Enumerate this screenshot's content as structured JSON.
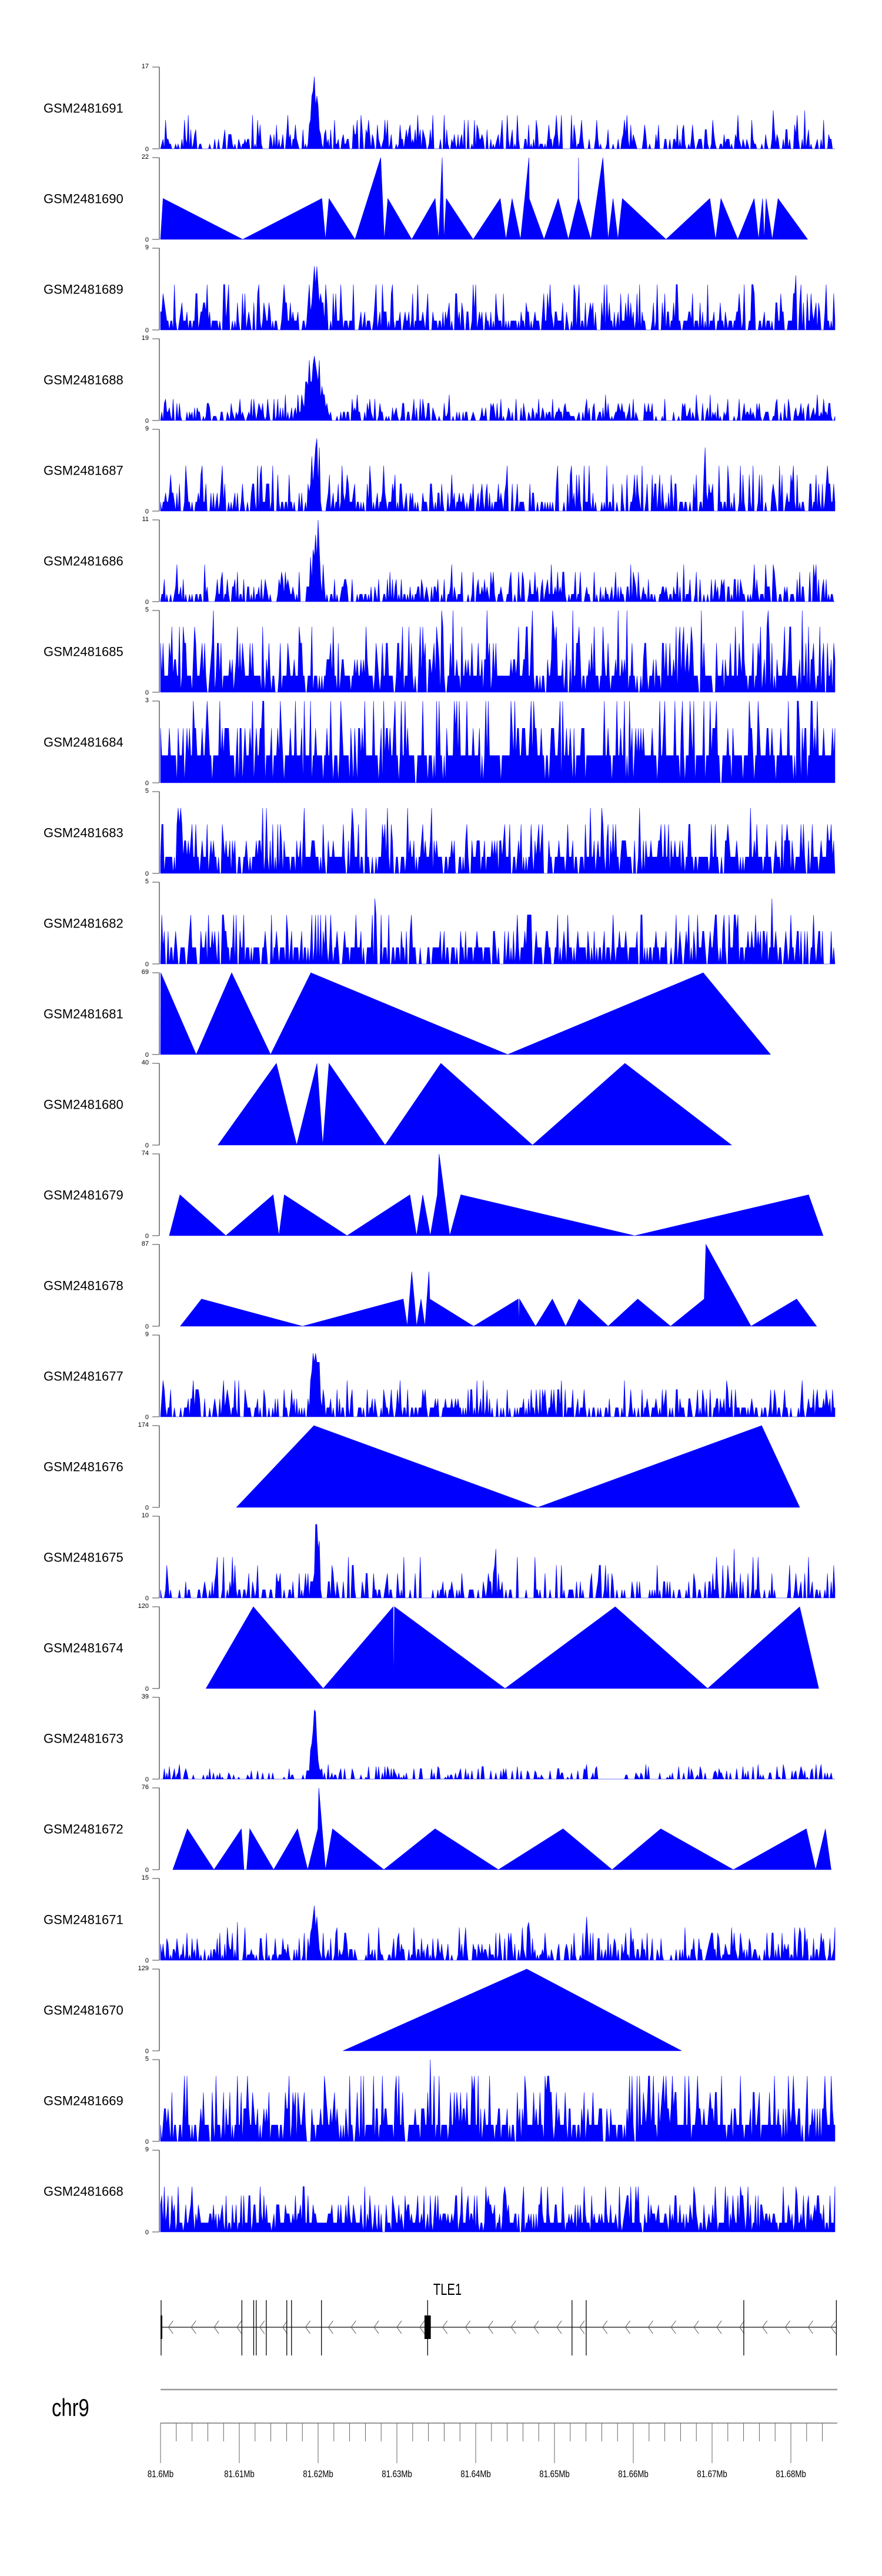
{
  "chart_data": {
    "type": "area",
    "colors": {
      "fill": "#0000ff",
      "axis": "#888888"
    },
    "x_unit": "kb offset from 81.6Mb",
    "xlim_kb": [
      0,
      86
    ],
    "tracks": [
      {
        "name": "GSM2481691",
        "ylim": [
          0,
          17
        ],
        "kind": "noise",
        "seed": 11,
        "density": 0.55,
        "spike": 0.35,
        "hotspot_kb": 19.6,
        "hotspot_amp": 1.0,
        "hotspot_w": 0.5
      },
      {
        "name": "GSM2481690",
        "ylim": [
          0,
          22
        ],
        "kind": "points",
        "points": [
          [
            0,
            0
          ],
          [
            0.32,
            11
          ],
          [
            10.43,
            0
          ],
          [
            20.48,
            11
          ],
          [
            20.93,
            0
          ],
          [
            21.38,
            11
          ],
          [
            24.69,
            0
          ],
          [
            27.95,
            22
          ],
          [
            28.4,
            0
          ],
          [
            28.85,
            11
          ],
          [
            31.88,
            0
          ],
          [
            34.85,
            11
          ],
          [
            35.3,
            0
          ],
          [
            35.75,
            22
          ],
          [
            35.98,
            0
          ],
          [
            36.26,
            11
          ],
          [
            39.68,
            0
          ],
          [
            43.11,
            11
          ],
          [
            43.84,
            0
          ],
          [
            44.62,
            11
          ],
          [
            45.69,
            0
          ],
          [
            46.76,
            22
          ],
          [
            46.8,
            11
          ],
          [
            48.67,
            0
          ],
          [
            50.47,
            11
          ],
          [
            51.76,
            0
          ],
          [
            53.0,
            11
          ],
          [
            53.05,
            22
          ],
          [
            53.1,
            11
          ],
          [
            54.62,
            0
          ],
          [
            56.14,
            22
          ],
          [
            56.81,
            0
          ],
          [
            57.43,
            11
          ],
          [
            58.05,
            0
          ],
          [
            58.61,
            11
          ],
          [
            64.16,
            0
          ],
          [
            69.72,
            11
          ],
          [
            70.45,
            0
          ],
          [
            71.13,
            11
          ],
          [
            73.26,
            0
          ],
          [
            75.34,
            11
          ],
          [
            75.9,
            0
          ],
          [
            76.41,
            11
          ],
          [
            76.63,
            0
          ],
          [
            76.86,
            11
          ],
          [
            77.64,
            0
          ],
          [
            78.37,
            11
          ],
          [
            82.13,
            0
          ]
        ]
      },
      {
        "name": "GSM2481689",
        "ylim": [
          0,
          9
        ],
        "kind": "noise",
        "seed": 23,
        "density": 0.7,
        "spike": 0.5,
        "hotspot_kb": 19.8,
        "hotspot_amp": 0.8,
        "hotspot_w": 0.8
      },
      {
        "name": "GSM2481688",
        "ylim": [
          0,
          19
        ],
        "kind": "noise",
        "seed": 37,
        "density": 0.6,
        "spike": 0.22,
        "hotspot_kb": 19.5,
        "hotspot_amp": 1.0,
        "hotspot_w": 1.1
      },
      {
        "name": "GSM2481687",
        "ylim": [
          0,
          9
        ],
        "kind": "noise",
        "seed": 41,
        "density": 0.6,
        "spike": 0.5,
        "hotspot_kb": 19.7,
        "hotspot_amp": 0.9,
        "hotspot_w": 0.5
      },
      {
        "name": "GSM2481686",
        "ylim": [
          0,
          11
        ],
        "kind": "noise",
        "seed": 53,
        "density": 0.6,
        "spike": 0.35,
        "hotspot_kb": 19.6,
        "hotspot_amp": 0.95,
        "hotspot_w": 0.7
      },
      {
        "name": "GSM2481685",
        "ylim": [
          0,
          5
        ],
        "kind": "noise",
        "seed": 67,
        "density": 0.85,
        "spike": 0.8,
        "hotspot_kb": null,
        "hotspot_amp": 0,
        "hotspot_w": 1
      },
      {
        "name": "GSM2481684",
        "ylim": [
          0,
          3
        ],
        "kind": "noise",
        "seed": 71,
        "density": 0.9,
        "spike": 0.85,
        "hotspot_kb": null,
        "hotspot_amp": 0,
        "hotspot_w": 1
      },
      {
        "name": "GSM2481683",
        "ylim": [
          0,
          5
        ],
        "kind": "noise",
        "seed": 83,
        "density": 0.8,
        "spike": 0.6,
        "hotspot_kb": null,
        "hotspot_amp": 0,
        "hotspot_w": 1
      },
      {
        "name": "GSM2481682",
        "ylim": [
          0,
          5
        ],
        "kind": "noise",
        "seed": 97,
        "density": 0.7,
        "spike": 0.55,
        "hotspot_kb": null,
        "hotspot_amp": 0,
        "hotspot_w": 1
      },
      {
        "name": "GSM2481681",
        "ylim": [
          0,
          69
        ],
        "kind": "points",
        "points": [
          [
            0,
            0
          ],
          [
            0.04,
            69
          ],
          [
            4.53,
            0
          ],
          [
            9.03,
            69
          ],
          [
            13.97,
            0
          ],
          [
            19.08,
            69
          ],
          [
            44.06,
            0
          ],
          [
            68.88,
            69
          ],
          [
            77.42,
            0
          ]
        ]
      },
      {
        "name": "GSM2481680",
        "ylim": [
          0,
          40
        ],
        "kind": "points",
        "points": [
          [
            7.28,
            0
          ],
          [
            14.7,
            40
          ],
          [
            17.28,
            0
          ],
          [
            19.86,
            40
          ],
          [
            20.59,
            0
          ],
          [
            21.38,
            40
          ],
          [
            28.51,
            0
          ],
          [
            35.58,
            40
          ],
          [
            47.21,
            0
          ],
          [
            58.94,
            40
          ],
          [
            72.47,
            0
          ]
        ]
      },
      {
        "name": "GSM2481679",
        "ylim": [
          0,
          74
        ],
        "kind": "points",
        "points": [
          [
            1.11,
            0
          ],
          [
            2.46,
            37
          ],
          [
            8.29,
            0
          ],
          [
            14.3,
            37
          ],
          [
            15.03,
            0
          ],
          [
            15.71,
            37
          ],
          [
            23.68,
            0
          ],
          [
            31.65,
            37
          ],
          [
            32.5,
            0
          ],
          [
            33.28,
            37
          ],
          [
            34.24,
            0
          ],
          [
            35.13,
            37
          ],
          [
            35.36,
            74
          ],
          [
            36.71,
            0
          ],
          [
            38.11,
            37
          ],
          [
            60.18,
            0
          ],
          [
            82.25,
            37
          ],
          [
            84.1,
            0
          ]
        ]
      },
      {
        "name": "GSM2481678",
        "ylim": [
          0,
          87
        ],
        "kind": "points",
        "points": [
          [
            2.51,
            0
          ],
          [
            5.21,
            29
          ],
          [
            18.01,
            0
          ],
          [
            30.81,
            29
          ],
          [
            31.32,
            0
          ],
          [
            31.88,
            58
          ],
          [
            32.2,
            29
          ],
          [
            32.5,
            0
          ],
          [
            33.06,
            29
          ],
          [
            33.56,
            0
          ],
          [
            34.07,
            58
          ],
          [
            34.18,
            29
          ],
          [
            39.74,
            0
          ],
          [
            45.41,
            29
          ],
          [
            45.5,
            0
          ],
          [
            45.55,
            29
          ],
          [
            47.6,
            0
          ],
          [
            49.73,
            29
          ],
          [
            51.42,
            0
          ],
          [
            53.1,
            29
          ],
          [
            56.81,
            0
          ],
          [
            60.57,
            29
          ],
          [
            64.73,
            0
          ],
          [
            69.0,
            29
          ],
          [
            69.22,
            87
          ],
          [
            74.94,
            0
          ],
          [
            80.73,
            29
          ],
          [
            83.26,
            0
          ]
        ]
      },
      {
        "name": "GSM2481677",
        "ylim": [
          0,
          9
        ],
        "kind": "noise",
        "seed": 101,
        "density": 0.6,
        "spike": 0.35,
        "hotspot_kb": 19.6,
        "hotspot_amp": 0.8,
        "hotspot_w": 0.7
      },
      {
        "name": "GSM2481676",
        "ylim": [
          0,
          174
        ],
        "kind": "points",
        "points": [
          [
            9.64,
            0
          ],
          [
            19.47,
            174
          ],
          [
            47.88,
            0
          ],
          [
            76.29,
            174
          ],
          [
            81.12,
            0
          ]
        ]
      },
      {
        "name": "GSM2481675",
        "ylim": [
          0,
          10
        ],
        "kind": "noise",
        "seed": 113,
        "density": 0.45,
        "spike": 0.4,
        "hotspot_kb": 19.8,
        "hotspot_amp": 0.9,
        "hotspot_w": 0.4
      },
      {
        "name": "GSM2481674",
        "ylim": [
          0,
          120
        ],
        "kind": "points",
        "points": [
          [
            5.77,
            0
          ],
          [
            11.78,
            120
          ],
          [
            20.65,
            0
          ],
          [
            29.52,
            120
          ],
          [
            29.6,
            0
          ],
          [
            29.69,
            120
          ],
          [
            43.73,
            0
          ],
          [
            57.71,
            120
          ],
          [
            69.44,
            0
          ],
          [
            81.12,
            120
          ],
          [
            83.54,
            0
          ]
        ]
      },
      {
        "name": "GSM2481673",
        "ylim": [
          0,
          39
        ],
        "kind": "noise",
        "seed": 127,
        "density": 0.35,
        "spike": 0.12,
        "hotspot_kb": 19.5,
        "hotspot_amp": 1.0,
        "hotspot_w": 0.45
      },
      {
        "name": "GSM2481672",
        "ylim": [
          0,
          76
        ],
        "kind": "points",
        "points": [
          [
            1.56,
            0
          ],
          [
            3.41,
            38
          ],
          [
            6.78,
            0
          ],
          [
            10.26,
            38
          ],
          [
            10.6,
            0
          ],
          [
            10.93,
            0
          ],
          [
            11.33,
            38
          ],
          [
            14.36,
            0
          ],
          [
            17.39,
            38
          ],
          [
            18.68,
            0
          ],
          [
            19.97,
            38
          ],
          [
            20.09,
            76
          ],
          [
            20.93,
            0
          ],
          [
            21.83,
            38
          ],
          [
            28.34,
            0
          ],
          [
            34.85,
            38
          ],
          [
            42.88,
            0
          ],
          [
            51.08,
            38
          ],
          [
            57.31,
            0
          ],
          [
            63.49,
            38
          ],
          [
            72.7,
            0
          ],
          [
            81.96,
            38
          ],
          [
            83.14,
            0
          ],
          [
            84.38,
            38
          ],
          [
            85.11,
            0
          ]
        ]
      },
      {
        "name": "GSM2481671",
        "ylim": [
          0,
          15
        ],
        "kind": "noise",
        "seed": 131,
        "density": 0.6,
        "spike": 0.35,
        "hotspot_kb": 19.6,
        "hotspot_amp": 0.7,
        "hotspot_w": 0.5
      },
      {
        "name": "GSM2481670",
        "ylim": [
          0,
          129
        ],
        "kind": "points",
        "points": [
          [
            23.17,
            0
          ],
          [
            46.48,
            129
          ],
          [
            66.13,
            0
          ]
        ]
      },
      {
        "name": "GSM2481669",
        "ylim": [
          0,
          5
        ],
        "kind": "noise",
        "seed": 139,
        "density": 0.85,
        "spike": 0.75,
        "hotspot_kb": null,
        "hotspot_amp": 0,
        "hotspot_w": 1
      },
      {
        "name": "GSM2481668",
        "ylim": [
          0,
          9
        ],
        "kind": "noise",
        "seed": 149,
        "density": 0.85,
        "spike": 0.5,
        "hotspot_kb": null,
        "hotspot_amp": 0,
        "hotspot_w": 1
      }
    ],
    "gene": {
      "name": "TLE1",
      "strand": "-",
      "span_kb": [
        0,
        85.8
      ],
      "exons_kb": [
        [
          0,
          0.15,
          "thick"
        ],
        [
          10.3,
          10.35
        ],
        [
          11.8,
          11.85
        ],
        [
          12.1,
          12.2
        ],
        [
          13.4,
          13.45
        ],
        [
          16.0,
          16.05
        ],
        [
          16.6,
          16.65
        ],
        [
          20.4,
          20.45
        ],
        [
          33.5,
          34.3,
          "thick"
        ],
        [
          52.2,
          52.25
        ],
        [
          54.0,
          54.05
        ],
        [
          74.0,
          74.05
        ],
        [
          85.75,
          85.8
        ]
      ]
    },
    "chromosome": "chr9",
    "axis": {
      "major_ticks": [
        "81.6Mb",
        "81.61Mb",
        "81.62Mb",
        "81.63Mb",
        "81.64Mb",
        "81.65Mb",
        "81.66Mb",
        "81.67Mb",
        "81.68Mb"
      ],
      "major_step_kb": 10,
      "minor_step_kb": 2
    }
  }
}
